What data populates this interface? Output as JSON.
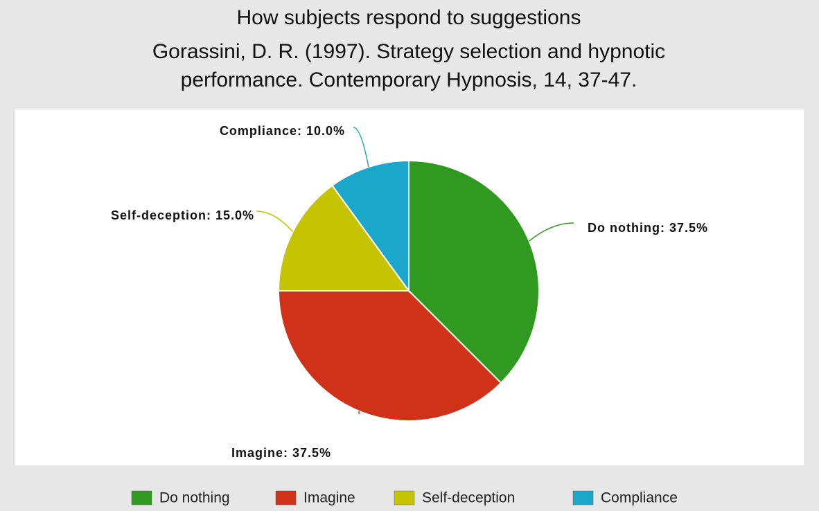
{
  "chart_data": {
    "type": "pie",
    "title": "How subjects respond to suggestions",
    "subtitle": [
      "Gorassini, D. R. (1997). Strategy selection and hypnotic",
      "performance. Contemporary Hypnosis, 14, 37-47."
    ],
    "categories": [
      "Do nothing",
      "Imagine",
      "Self-deception",
      "Compliance"
    ],
    "values": [
      37.5,
      37.5,
      15.0,
      10.0
    ],
    "value_labels": [
      "Do nothing: 37.5%",
      "Imagine: 37.5%",
      "Self-deception: 15.0%",
      "Compliance: 10.0%"
    ],
    "colors": [
      "#2f9a1f",
      "#cf3219",
      "#c6c400",
      "#1ba7cc"
    ],
    "legend": "bottom"
  }
}
